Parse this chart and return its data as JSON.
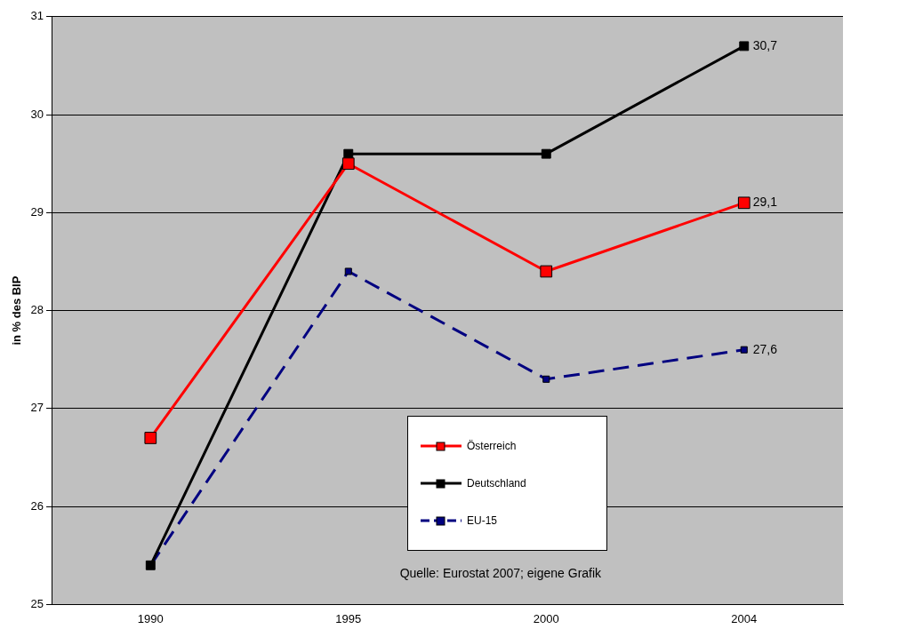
{
  "chart_data": {
    "type": "line",
    "ylabel": "in % des BIP",
    "categories": [
      "1990",
      "1995",
      "2000",
      "2004"
    ],
    "series": [
      {
        "name": "Österreich",
        "color": "#ff0000",
        "values": [
          26.7,
          29.5,
          28.4,
          29.1
        ],
        "value_labels": [
          null,
          null,
          null,
          "29,1"
        ]
      },
      {
        "name": "Deutschland",
        "color": "#000000",
        "values": [
          25.4,
          29.6,
          29.6,
          30.7
        ],
        "value_labels": [
          null,
          null,
          null,
          "30,7"
        ]
      },
      {
        "name": "EU-15",
        "color": "#000080",
        "values": [
          25.4,
          28.4,
          27.3,
          27.6
        ],
        "value_labels": [
          null,
          null,
          null,
          "27,6"
        ],
        "line_style": "dashed"
      }
    ],
    "ylim": [
      25,
      31
    ],
    "yticks": [
      25,
      26,
      27,
      28,
      29,
      30,
      31
    ],
    "grid": "y",
    "legend": "bottom",
    "marker": "square",
    "annotations": [
      "Quelle: Eurostat 2007; eigene Grafik"
    ]
  }
}
